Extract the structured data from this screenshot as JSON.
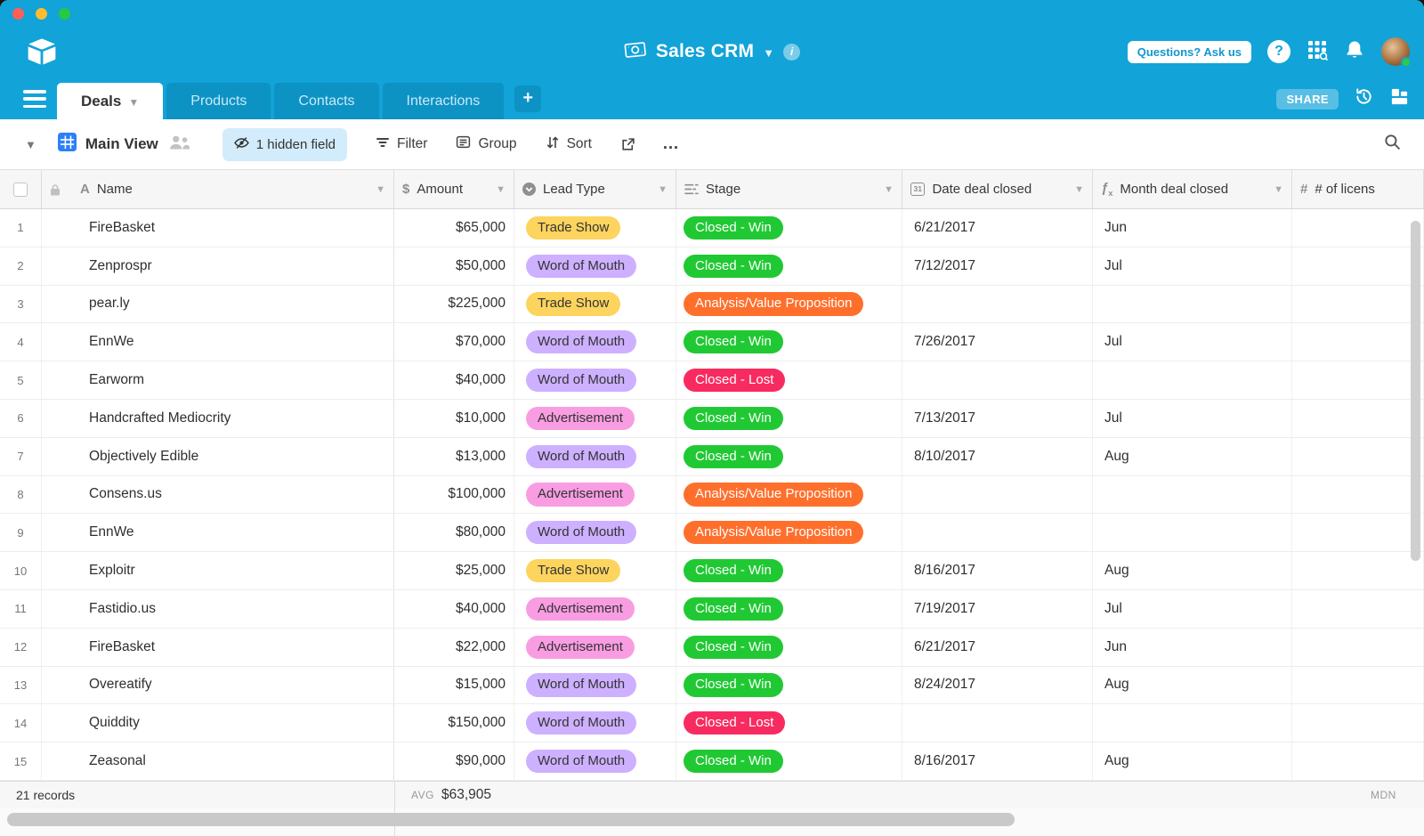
{
  "colors": {
    "topbar": "#12a3d8",
    "tab_inactive": "#0d92c4",
    "hidden_pill_bg": "#d2ecfb",
    "grid_view_icon_blue": "#2d7ff9",
    "traffic_lights": {
      "red": "#ff5f57",
      "yellow": "#febc2e",
      "green": "#28c840"
    },
    "badges": {
      "Trade Show": {
        "bg": "#fcd45e",
        "fg": "#333333"
      },
      "Word of Mouth": {
        "bg": "#cdb0ff",
        "fg": "#333333"
      },
      "Advertisement": {
        "bg": "#f99de2",
        "fg": "#333333"
      },
      "Closed - Win": {
        "bg": "#20c933",
        "fg": "#ffffff"
      },
      "Closed - Lost": {
        "bg": "#f82b60",
        "fg": "#ffffff"
      },
      "Analysis/Value Proposition": {
        "bg": "#ff6f2c",
        "fg": "#ffffff"
      }
    }
  },
  "header": {
    "title": "Sales CRM",
    "questions_label": "Questions? Ask us",
    "help_label": "?"
  },
  "tabs": [
    {
      "label": "Deals",
      "active": true
    },
    {
      "label": "Products",
      "active": false
    },
    {
      "label": "Contacts",
      "active": false
    },
    {
      "label": "Interactions",
      "active": false
    }
  ],
  "tabbar": {
    "share_label": "SHARE",
    "add_label": "+"
  },
  "toolbar": {
    "view_name": "Main View",
    "hidden_field_label": "1 hidden field",
    "filter_label": "Filter",
    "group_label": "Group",
    "sort_label": "Sort",
    "more_label": "…"
  },
  "table": {
    "columns": [
      {
        "key": "name",
        "label": "Name",
        "icon": "text-field-icon",
        "caret": true
      },
      {
        "key": "amount",
        "label": "Amount",
        "icon": "currency-field-icon",
        "caret": true
      },
      {
        "key": "lead_type",
        "label": "Lead Type",
        "icon": "select-field-icon",
        "caret": true
      },
      {
        "key": "stage",
        "label": "Stage",
        "icon": "multiselect-field-icon",
        "caret": true
      },
      {
        "key": "date",
        "label": "Date deal closed",
        "icon": "calendar-field-icon",
        "caret": true
      },
      {
        "key": "month",
        "label": "Month deal closed",
        "icon": "formula-field-icon",
        "caret": true
      },
      {
        "key": "licenses",
        "label": "# of licens",
        "icon": "number-field-icon",
        "caret": false
      }
    ],
    "rows": [
      {
        "num": "1",
        "name": "FireBasket",
        "amount": "$65,000",
        "lead_type": "Trade Show",
        "stage": "Closed - Win",
        "date": "6/21/2017",
        "month": "Jun",
        "licenses": ""
      },
      {
        "num": "2",
        "name": "Zenprospr",
        "amount": "$50,000",
        "lead_type": "Word of Mouth",
        "stage": "Closed - Win",
        "date": "7/12/2017",
        "month": "Jul",
        "licenses": ""
      },
      {
        "num": "3",
        "name": "pear.ly",
        "amount": "$225,000",
        "lead_type": "Trade Show",
        "stage": "Analysis/Value Proposition",
        "date": "",
        "month": "",
        "licenses": ""
      },
      {
        "num": "4",
        "name": "EnnWe",
        "amount": "$70,000",
        "lead_type": "Word of Mouth",
        "stage": "Closed - Win",
        "date": "7/26/2017",
        "month": "Jul",
        "licenses": ""
      },
      {
        "num": "5",
        "name": "Earworm",
        "amount": "$40,000",
        "lead_type": "Word of Mouth",
        "stage": "Closed - Lost",
        "date": "",
        "month": "",
        "licenses": ""
      },
      {
        "num": "6",
        "name": "Handcrafted Mediocrity",
        "amount": "$10,000",
        "lead_type": "Advertisement",
        "stage": "Closed - Win",
        "date": "7/13/2017",
        "month": "Jul",
        "licenses": ""
      },
      {
        "num": "7",
        "name": "Objectively Edible",
        "amount": "$13,000",
        "lead_type": "Word of Mouth",
        "stage": "Closed - Win",
        "date": "8/10/2017",
        "month": "Aug",
        "licenses": ""
      },
      {
        "num": "8",
        "name": "Consens.us",
        "amount": "$100,000",
        "lead_type": "Advertisement",
        "stage": "Analysis/Value Proposition",
        "date": "",
        "month": "",
        "licenses": ""
      },
      {
        "num": "9",
        "name": "EnnWe",
        "amount": "$80,000",
        "lead_type": "Word of Mouth",
        "stage": "Analysis/Value Proposition",
        "date": "",
        "month": "",
        "licenses": ""
      },
      {
        "num": "10",
        "name": "Exploitr",
        "amount": "$25,000",
        "lead_type": "Trade Show",
        "stage": "Closed - Win",
        "date": "8/16/2017",
        "month": "Aug",
        "licenses": ""
      },
      {
        "num": "11",
        "name": "Fastidio.us",
        "amount": "$40,000",
        "lead_type": "Advertisement",
        "stage": "Closed - Win",
        "date": "7/19/2017",
        "month": "Jul",
        "licenses": ""
      },
      {
        "num": "12",
        "name": "FireBasket",
        "amount": "$22,000",
        "lead_type": "Advertisement",
        "stage": "Closed - Win",
        "date": "6/21/2017",
        "month": "Jun",
        "licenses": ""
      },
      {
        "num": "13",
        "name": "Overeatify",
        "amount": "$15,000",
        "lead_type": "Word of Mouth",
        "stage": "Closed - Win",
        "date": "8/24/2017",
        "month": "Aug",
        "licenses": ""
      },
      {
        "num": "14",
        "name": "Quiddity",
        "amount": "$150,000",
        "lead_type": "Word of Mouth",
        "stage": "Closed - Lost",
        "date": "",
        "month": "",
        "licenses": ""
      },
      {
        "num": "15",
        "name": "Zeasonal",
        "amount": "$90,000",
        "lead_type": "Word of Mouth",
        "stage": "Closed - Win",
        "date": "8/16/2017",
        "month": "Aug",
        "licenses": ""
      }
    ],
    "footer": {
      "records": "21 records",
      "avg_label": "AVG",
      "avg_value": "$63,905",
      "mdn_label": "MDN"
    }
  }
}
